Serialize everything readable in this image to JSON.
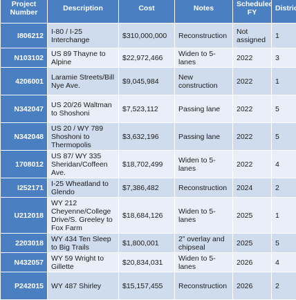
{
  "headers": [
    "Project Number",
    "Description",
    "Cost",
    "Notes",
    "Scheduled FY",
    "District"
  ],
  "rows": [
    {
      "number": "I806212",
      "description": "I-80 / I-25 Interchange",
      "cost": "$310,000,000",
      "notes": "Reconstruction",
      "fy": "Not assigned",
      "district": "1"
    },
    {
      "number": "N103102",
      "description": "US 89 Thayne to Alpine",
      "cost": "$22,972,466",
      "notes": "Widen to 5-lanes",
      "fy": "2022",
      "district": "3"
    },
    {
      "number": "4206001",
      "description": "Laramie Streets/Bill Nye Ave.",
      "cost": "$9,045,984",
      "notes": "New construction",
      "fy": "2022",
      "district": "1"
    },
    {
      "number": "N342047",
      "description": "US 20/26 Waltman to Shoshoni",
      "cost": "$7,523,112",
      "notes": "Passing lane",
      "fy": "2022",
      "district": "5"
    },
    {
      "number": "N342048",
      "description": "US 20 / WY 789 Shoshoni to Thermopolis",
      "cost": "$3,632,196",
      "notes": "Passing lane",
      "fy": "2022",
      "district": "5"
    },
    {
      "number": "1708012",
      "description": "US 87/ WY 335 Sheridan/Coffeen Ave.",
      "cost": "$18,702,499",
      "notes": "Widen to 5-lanes",
      "fy": "2022",
      "district": "4"
    },
    {
      "number": "I252171",
      "description": "I-25 Wheatland to Glendo",
      "cost": "$7,386,482",
      "notes": "Reconstruction",
      "fy": "2024",
      "district": "2"
    },
    {
      "number": "U212018",
      "description": "WY 212 Cheyenne/College Drive/S. Greeley to Fox Farm",
      "cost": "$18,684,126",
      "notes": "Widen to 5-lanes",
      "fy": "2025",
      "district": "1"
    },
    {
      "number": "2203018",
      "description": "WY 434 Ten Sleep to Big Trails",
      "cost": "$1,800,001",
      "notes": "2” overlay and chipseal",
      "fy": "2025",
      "district": "5"
    },
    {
      "number": "N432057",
      "description": "WY 59 Wright to Gillette",
      "cost": "$20,834,031",
      "notes": "Widen to 5-lanes",
      "fy": "2026",
      "district": "4"
    },
    {
      "number": "P242015",
      "description": "WY 487 Shirley",
      "cost": "$15,157,455",
      "notes": "Reconstruction",
      "fy": "2026",
      "district": "2"
    }
  ]
}
